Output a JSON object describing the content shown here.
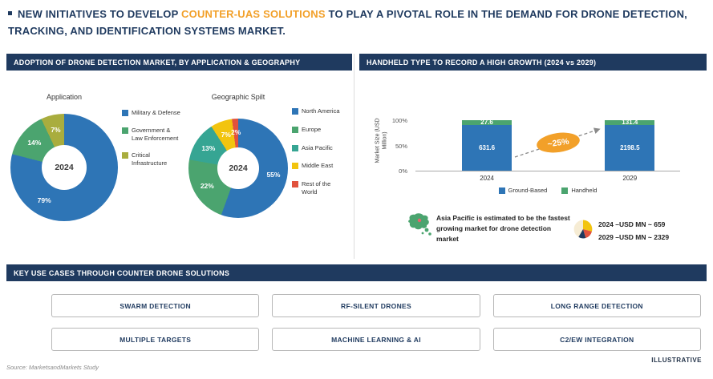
{
  "title": {
    "pre": "NEW INITIATIVES TO DEVELOP ",
    "highlight": "COUNTER-UAS SOLUTIONS",
    "post": " TO PLAY A PIVOTAL ROLE IN THE DEMAND FOR DRONE DETECTION, TRACKING, AND IDENTIFICATION SYSTEMS MARKET."
  },
  "colors": {
    "navy": "#1F3A5F",
    "orange": "#F2A029",
    "blue": "#2E75B6",
    "green": "#4BA46F",
    "teal": "#36A593",
    "olive": "#A9AD3E",
    "yellow": "#F2C40F",
    "red": "#E1523D"
  },
  "left_panel": {
    "header": "ADOPTION OF DRONE DETECTION MARKET, BY APPLICATION & GEOGRAPHY"
  },
  "right_panel": {
    "header": "HANDHELD TYPE TO RECORD A HIGH GROWTH (2024 vs 2029)",
    "note_map": "Asia Pacific is estimated to be the fastest growing market for drone detection market",
    "note_values": [
      "2024 –USD MN ~ 659",
      "2029 –USD MN ~ 2329"
    ]
  },
  "chart_data": [
    {
      "type": "pie",
      "variant": "donut",
      "title": "Application",
      "center_label": "2024",
      "size": 134,
      "hole_ratio": 0.42,
      "legend_position": "right",
      "slices": [
        {
          "label": "Military & Defense",
          "value": 79,
          "pct": "79%",
          "color": "#2E75B6",
          "label_angle": 211
        },
        {
          "label": "Government & Law Enforcement",
          "value": 14,
          "pct": "14%",
          "color": "#4BA46F"
        },
        {
          "label": "Critical Infrastructure",
          "value": 7,
          "pct": "7%",
          "color": "#A9AD3E"
        }
      ]
    },
    {
      "type": "pie",
      "variant": "donut",
      "title": "Geographic Spilt",
      "center_label": "2024",
      "size": 124,
      "hole_ratio": 0.42,
      "legend_position": "right",
      "slices": [
        {
          "label": "North America",
          "value": 55,
          "pct": "55%",
          "color": "#2E75B6"
        },
        {
          "label": "Europe",
          "value": 22,
          "pct": "22%",
          "color": "#4BA46F"
        },
        {
          "label": "Asia Pacific",
          "value": 13,
          "pct": "13%",
          "color": "#36A593"
        },
        {
          "label": "Middle East",
          "value": 7,
          "pct": "7%",
          "color": "#F2C40F"
        },
        {
          "label": "Rest of the World",
          "value": 2,
          "pct": "2%",
          "color": "#E1523D"
        }
      ]
    },
    {
      "type": "bar",
      "variant": "stacked-100",
      "ylabel": "Market Size (USD Million)",
      "yticks": [
        "100%",
        "50%",
        "0%"
      ],
      "ylim": [
        0,
        100
      ],
      "categories": [
        "2024",
        "2029"
      ],
      "series": [
        {
          "name": "Ground-Based",
          "color": "#2E75B6",
          "values": [
            631.6,
            2198.5
          ]
        },
        {
          "name": "Handheld",
          "color": "#4BA46F",
          "values": [
            27.6,
            131.4
          ]
        }
      ],
      "growth_annotation": "~25%",
      "legend_position": "bottom"
    }
  ],
  "use_cases": {
    "header": "KEY USE CASES THROUGH COUNTER DRONE SOLUTIONS",
    "items": [
      "SWARM DETECTION",
      "RF-SILENT DRONES",
      "LONG RANGE DETECTION",
      "MULTIPLE TARGETS",
      "MACHINE LEARNING & AI",
      "C2/EW INTEGRATION"
    ]
  },
  "footer": {
    "source": "Source: MarketsandMarkets Study",
    "illustrative": "ILLUSTRATIVE"
  }
}
